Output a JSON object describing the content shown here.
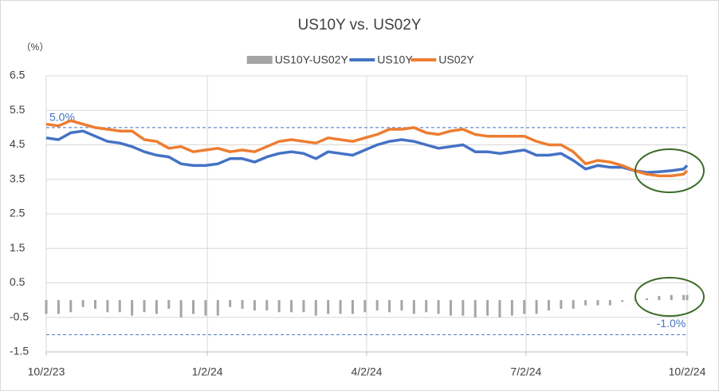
{
  "chart_data": {
    "type": "line",
    "title": "US10Y vs. US02Y",
    "y_label": "（%）",
    "x": [
      "10/2/23",
      "10/9/23",
      "10/16/23",
      "10/23/23",
      "10/30/23",
      "11/6/23",
      "11/13/23",
      "11/20/23",
      "11/27/23",
      "12/4/23",
      "12/11/23",
      "12/18/23",
      "12/25/23",
      "1/1/24",
      "1/8/24",
      "1/15/24",
      "1/22/24",
      "1/29/24",
      "2/5/24",
      "2/12/24",
      "2/19/24",
      "2/26/24",
      "3/4/24",
      "3/11/24",
      "3/18/24",
      "3/25/24",
      "4/1/24",
      "4/8/24",
      "4/15/24",
      "4/22/24",
      "4/29/24",
      "5/6/24",
      "5/13/24",
      "5/20/24",
      "5/27/24",
      "6/3/24",
      "6/10/24",
      "6/17/24",
      "6/24/24",
      "7/1/24",
      "7/8/24",
      "7/15/24",
      "7/22/24",
      "7/29/24",
      "8/5/24",
      "8/12/24",
      "8/19/24",
      "8/26/24",
      "9/2/24",
      "9/9/24",
      "9/16/24",
      "9/23/24",
      "9/30/24",
      "10/2/24"
    ],
    "series": [
      {
        "name": "US10Y-US02Y",
        "kind": "bar",
        "color": "#a5a5a5",
        "values": [
          -0.4,
          -0.4,
          -0.35,
          -0.2,
          -0.25,
          -0.35,
          -0.35,
          -0.45,
          -0.35,
          -0.4,
          -0.25,
          -0.5,
          -0.4,
          -0.45,
          -0.45,
          -0.2,
          -0.25,
          -0.3,
          -0.3,
          -0.35,
          -0.35,
          -0.35,
          -0.45,
          -0.4,
          -0.4,
          -0.4,
          -0.35,
          -0.3,
          -0.35,
          -0.3,
          -0.4,
          -0.35,
          -0.4,
          -0.45,
          -0.45,
          -0.5,
          -0.45,
          -0.5,
          -0.45,
          -0.4,
          -0.4,
          -0.3,
          -0.25,
          -0.25,
          -0.15,
          -0.15,
          -0.15,
          -0.05,
          0,
          0.05,
          0.12,
          0.15,
          0.15,
          0.15
        ]
      },
      {
        "name": "US10Y",
        "kind": "line",
        "color": "#4472c4",
        "values": [
          4.7,
          4.65,
          4.85,
          4.9,
          4.75,
          4.6,
          4.55,
          4.45,
          4.3,
          4.2,
          4.15,
          3.95,
          3.9,
          3.9,
          3.95,
          4.1,
          4.1,
          4.0,
          4.15,
          4.25,
          4.3,
          4.25,
          4.1,
          4.3,
          4.25,
          4.2,
          4.35,
          4.5,
          4.6,
          4.65,
          4.6,
          4.5,
          4.4,
          4.45,
          4.5,
          4.3,
          4.3,
          4.25,
          4.3,
          4.35,
          4.2,
          4.2,
          4.25,
          4.05,
          3.8,
          3.9,
          3.85,
          3.85,
          3.75,
          3.7,
          3.72,
          3.75,
          3.8,
          3.9
        ]
      },
      {
        "name": "US02Y",
        "kind": "line",
        "color": "#ed7d31",
        "values": [
          5.1,
          5.05,
          5.2,
          5.1,
          5.0,
          4.95,
          4.9,
          4.9,
          4.65,
          4.6,
          4.4,
          4.45,
          4.3,
          4.35,
          4.4,
          4.3,
          4.35,
          4.3,
          4.45,
          4.6,
          4.65,
          4.6,
          4.55,
          4.7,
          4.65,
          4.6,
          4.7,
          4.8,
          4.95,
          4.95,
          5.0,
          4.85,
          4.8,
          4.9,
          4.95,
          4.8,
          4.75,
          4.75,
          4.75,
          4.75,
          4.6,
          4.5,
          4.5,
          4.3,
          3.95,
          4.05,
          4.0,
          3.9,
          3.75,
          3.65,
          3.6,
          3.6,
          3.65,
          3.75
        ]
      }
    ],
    "xlim": [
      "10/2/23",
      "10/2/24"
    ],
    "xticks": [
      "10/2/23",
      "1/2/24",
      "4/2/24",
      "7/2/24",
      "10/2/24"
    ],
    "ylim": [
      -1.5,
      6.5
    ],
    "yticks": [
      -1.5,
      -0.5,
      0.5,
      1.5,
      2.5,
      3.5,
      4.5,
      5.5,
      6.5
    ],
    "grid": true,
    "reference_lines": [
      {
        "value": 5.0,
        "label": "5.0%",
        "color": "#4472c4"
      },
      {
        "value": -1.0,
        "label": "-1.0%",
        "color": "#4472c4"
      }
    ],
    "legend": "top"
  }
}
